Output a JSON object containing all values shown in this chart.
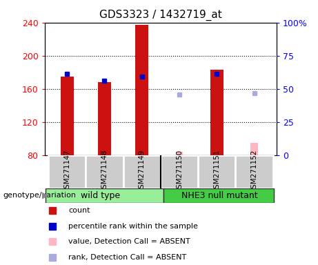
{
  "title": "GDS3323 / 1432719_at",
  "samples": [
    "GSM271147",
    "GSM271148",
    "GSM271149",
    "GSM271150",
    "GSM271151",
    "GSM271152"
  ],
  "count_values": [
    175,
    168,
    237,
    null,
    183,
    null
  ],
  "percentile_values": [
    178,
    170,
    175,
    null,
    178,
    null
  ],
  "absent_value_values": [
    null,
    null,
    null,
    84,
    null,
    95
  ],
  "absent_rank_values": [
    null,
    null,
    null,
    153,
    null,
    155
  ],
  "ylim_left": [
    80,
    240
  ],
  "ylim_right": [
    0,
    100
  ],
  "yticks_left": [
    80,
    120,
    160,
    200,
    240
  ],
  "yticks_right": [
    0,
    25,
    50,
    75,
    100
  ],
  "ytick_right_labels": [
    "0",
    "25",
    "50",
    "75",
    "100%"
  ],
  "bar_width": 0.35,
  "count_color": "#CC1111",
  "percentile_color": "#0000CC",
  "absent_value_color": "#FFB6C1",
  "absent_rank_color": "#AAAADD",
  "plot_bg": "#FFFFFF",
  "label_area_color": "#CCCCCC",
  "wt_color": "#99EE99",
  "nhe_color": "#44CC44",
  "genotype_label": "genotype/variation",
  "wt_label": "wild type",
  "nhe_label": "NHE3 null mutant",
  "legend_items": [
    {
      "color": "#CC1111",
      "label": "count"
    },
    {
      "color": "#0000CC",
      "label": "percentile rank within the sample"
    },
    {
      "color": "#FFB6C1",
      "label": "value, Detection Call = ABSENT"
    },
    {
      "color": "#AAAADD",
      "label": "rank, Detection Call = ABSENT"
    }
  ]
}
